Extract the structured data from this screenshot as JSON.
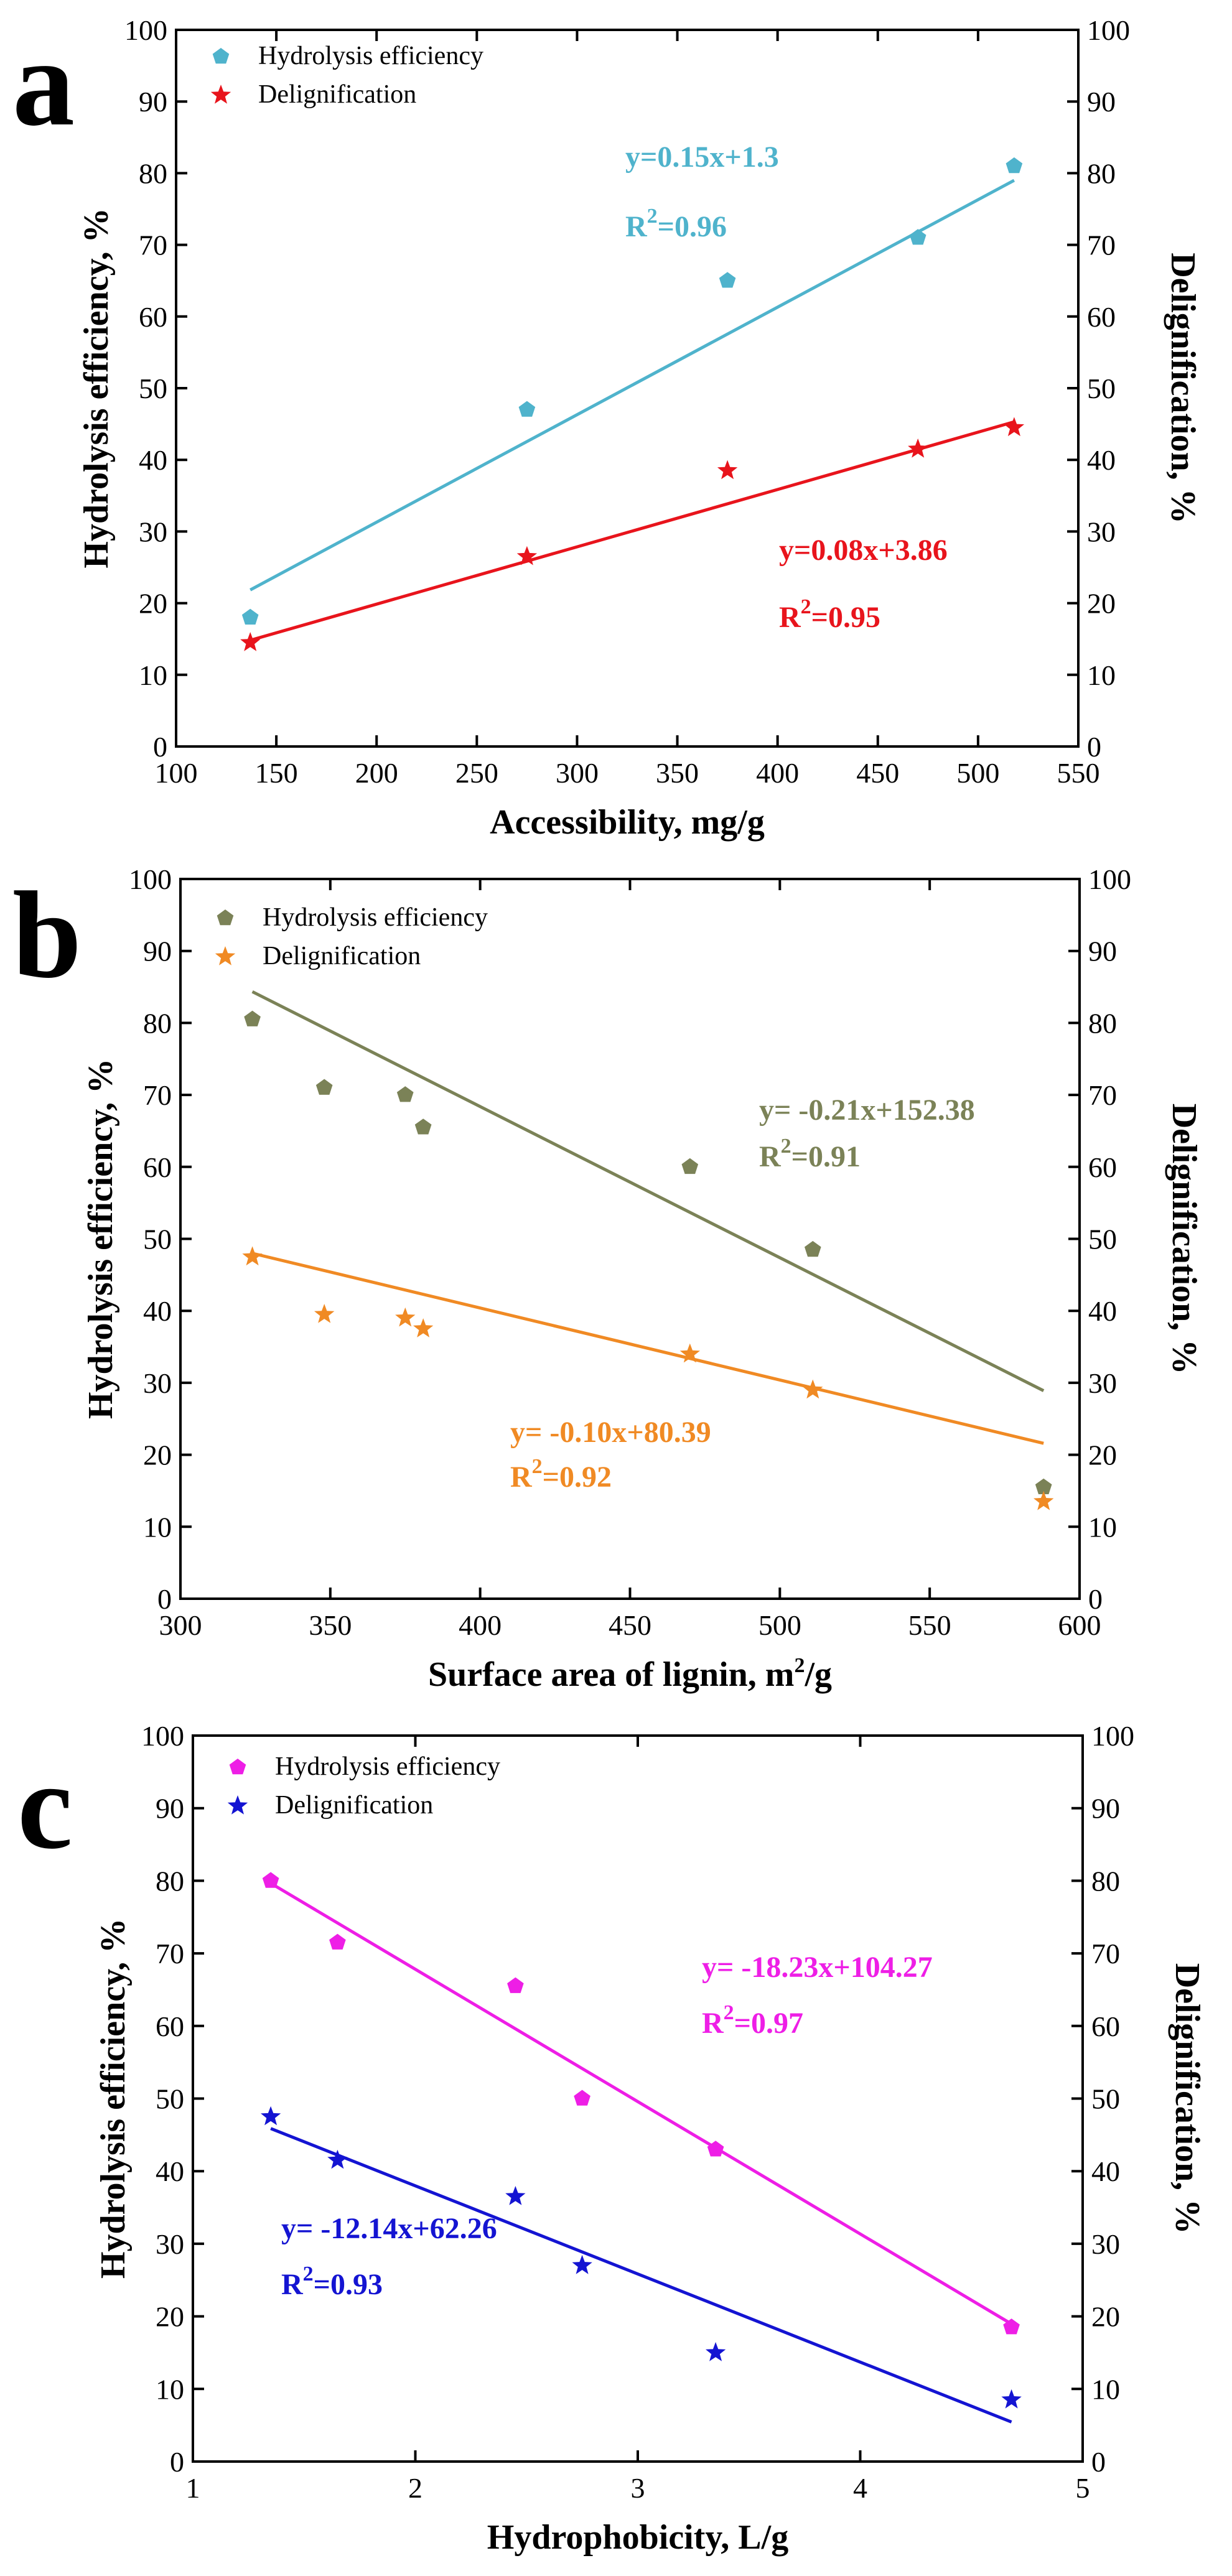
{
  "chart_data": [
    {
      "type": "scatter",
      "panel_label": "a",
      "title": "",
      "xlabel": "Accessibility, mg/g",
      "ylabel": "Hydrolysis efficiency, %",
      "ylabel_right": "Delignification, %",
      "xlim": [
        100,
        550
      ],
      "xticks": [
        100,
        150,
        200,
        250,
        300,
        350,
        400,
        450,
        500,
        550
      ],
      "ylim": [
        0,
        100
      ],
      "yticks": [
        0,
        10,
        20,
        30,
        40,
        50,
        60,
        70,
        80,
        90,
        100
      ],
      "legend_position": "top-left",
      "series": [
        {
          "name": "Hydrolysis efficiency",
          "marker": "pentagon",
          "color": "#4fb3cc",
          "x": [
            137,
            275,
            375,
            470,
            518
          ],
          "y": [
            18,
            47,
            65,
            71,
            81
          ],
          "fit": {
            "slope": 0.15,
            "intercept": 1.3,
            "x_range": [
              137,
              518
            ]
          },
          "equation": "y=0.15x+1.3",
          "r2_prefix": "R",
          "r2_suffix": "=0.96"
        },
        {
          "name": "Delignification",
          "marker": "star",
          "color": "#e8141c",
          "x": [
            137,
            275,
            375,
            470,
            518
          ],
          "y": [
            14.5,
            26.5,
            38.5,
            41.5,
            44.5
          ],
          "fit": {
            "slope": 0.08,
            "intercept": 3.86,
            "x_range": [
              137,
              518
            ]
          },
          "equation": "y=0.08x+3.86",
          "r2_prefix": "R",
          "r2_suffix": "=0.95"
        }
      ]
    },
    {
      "type": "scatter",
      "panel_label": "b",
      "title": "",
      "xlabel_main": "Surface area of lignin, m",
      "xlabel_sup": "2",
      "xlabel_tail": "/g",
      "ylabel": "Hydrolysis efficiency, %",
      "ylabel_right": "Delignification, %",
      "xlim": [
        300,
        600
      ],
      "xticks": [
        300,
        350,
        400,
        450,
        500,
        550,
        600
      ],
      "ylim": [
        0,
        100
      ],
      "yticks": [
        0,
        10,
        20,
        30,
        40,
        50,
        60,
        70,
        80,
        90,
        100
      ],
      "legend_position": "top-left",
      "series": [
        {
          "name": "Hydrolysis efficiency",
          "marker": "pentagon",
          "color": "#7b8257",
          "x": [
            324,
            348,
            375,
            381,
            470,
            511,
            588
          ],
          "y": [
            80.5,
            71,
            70,
            65.5,
            60,
            48.5,
            15.5
          ],
          "fit": {
            "slope": -0.21,
            "intercept": 152.38,
            "x_range": [
              324,
              588
            ]
          },
          "equation": "y= -0.21x+152.38",
          "r2_prefix": "R",
          "r2_suffix": "=0.91"
        },
        {
          "name": "Delignification",
          "marker": "star",
          "color": "#f08a24",
          "x": [
            324,
            348,
            375,
            381,
            470,
            511,
            588
          ],
          "y": [
            47.5,
            39.5,
            39,
            37.5,
            34,
            29,
            13.5
          ],
          "fit": {
            "slope": -0.1,
            "intercept": 80.39,
            "x_range": [
              324,
              588
            ]
          },
          "equation": "y= -0.10x+80.39",
          "r2_prefix": "R",
          "r2_suffix": "=0.92"
        }
      ]
    },
    {
      "type": "scatter",
      "panel_label": "c",
      "title": "",
      "xlabel": "Hydrophobicity, L/g",
      "ylabel": "Hydrolysis efficiency, %",
      "ylabel_right": "Delignification, %",
      "xlim": [
        1,
        5
      ],
      "xticks": [
        1,
        2,
        3,
        4,
        5
      ],
      "ylim": [
        0,
        100
      ],
      "yticks": [
        0,
        10,
        20,
        30,
        40,
        50,
        60,
        70,
        80,
        90,
        100
      ],
      "legend_position": "top-left",
      "series": [
        {
          "name": "Hydrolysis efficiency",
          "marker": "pentagon",
          "color": "#ee1ee6",
          "x": [
            1.35,
            1.65,
            2.45,
            2.75,
            3.35,
            4.68
          ],
          "y": [
            80,
            71.5,
            65.5,
            50,
            43,
            18.5
          ],
          "fit": {
            "slope": -18.23,
            "intercept": 104.27,
            "x_range": [
              1.35,
              4.68
            ]
          },
          "equation": "y= -18.23x+104.27",
          "r2_prefix": "R",
          "r2_suffix": "=0.97"
        },
        {
          "name": "Delignification",
          "marker": "star",
          "color": "#1414d2",
          "x": [
            1.35,
            1.65,
            2.45,
            2.75,
            3.35,
            4.68
          ],
          "y": [
            47.5,
            41.5,
            36.5,
            27,
            15,
            8.5
          ],
          "fit": {
            "slope": -12.14,
            "intercept": 62.26,
            "x_range": [
              1.35,
              4.68
            ]
          },
          "equation": "y= -12.14x+62.26",
          "r2_prefix": "R",
          "r2_suffix": "=0.93"
        }
      ]
    }
  ]
}
